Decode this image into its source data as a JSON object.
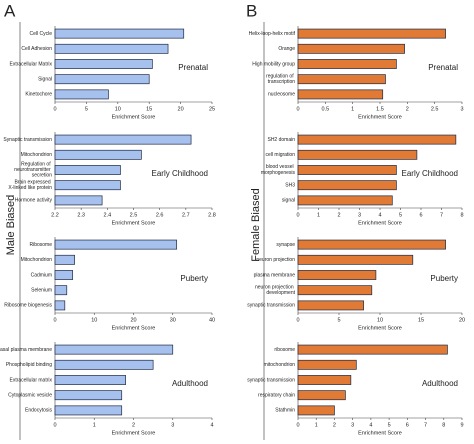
{
  "panels": [
    {
      "letter": "A",
      "label": "Male Biased"
    },
    {
      "letter": "B",
      "label": "Female Biased"
    }
  ],
  "chart_data": [
    {
      "type": "bar",
      "orientation": "horizontal",
      "panel": 0,
      "annotation": "Prenatal",
      "xlabel": "Enrichment Score",
      "color": "#a7c1ee",
      "categories": [
        "Cell Cycle",
        "Cell Adhesion",
        "Extracellular Matrix",
        "Signal",
        "Kinetochore"
      ],
      "values": [
        20.5,
        18,
        15.5,
        15,
        8.5
      ],
      "xlim": [
        0,
        25
      ],
      "xticks": [
        0,
        5,
        10,
        15,
        20,
        25
      ]
    },
    {
      "type": "bar",
      "orientation": "horizontal",
      "panel": 0,
      "annotation": "Early Childhood",
      "xlabel": "Enrichment Score",
      "color": "#a7c1ee",
      "categories": [
        "Synaptic transmission",
        "Mitochondrion",
        "Regulation of neurotransmitter secretion",
        "Brain expressed X-linked like protein",
        "Hormone activity"
      ],
      "values": [
        2.72,
        2.53,
        2.45,
        2.45,
        2.38
      ],
      "xlim": [
        2.2,
        2.8
      ],
      "xticks": [
        2.2,
        2.3,
        2.4,
        2.5,
        2.6,
        2.7,
        2.8
      ]
    },
    {
      "type": "bar",
      "orientation": "horizontal",
      "panel": 0,
      "annotation": "Puberty",
      "xlabel": "Enrichment Score",
      "color": "#a7c1ee",
      "categories": [
        "Ribosome",
        "Mitochondrion",
        "Cadmium",
        "Selenium",
        "Ribosome biogenesis"
      ],
      "values": [
        31,
        5,
        4.5,
        3,
        2.5
      ],
      "xlim": [
        0,
        40
      ],
      "xticks": [
        0,
        10,
        20,
        30,
        40
      ]
    },
    {
      "type": "bar",
      "orientation": "horizontal",
      "panel": 0,
      "annotation": "Adulthood",
      "xlabel": "Enrichment Score",
      "color": "#a7c1ee",
      "categories": [
        "Basal plasma membrane",
        "Phospholipid binding",
        "Extracellular matrix",
        "Cytoplasmic vesicle",
        "Endocytosis"
      ],
      "values": [
        3.0,
        2.5,
        1.8,
        1.7,
        1.7
      ],
      "xlim": [
        0,
        4
      ],
      "xticks": [
        0,
        1,
        2,
        3,
        4
      ]
    },
    {
      "type": "bar",
      "orientation": "horizontal",
      "panel": 1,
      "annotation": "Prenatal",
      "xlabel": "Enrichment Score",
      "color": "#e07a35",
      "categories": [
        "Helix-loop-helix motif",
        "Orange",
        "High mobility group",
        "regulation of transcription",
        "nucleosome"
      ],
      "values": [
        2.7,
        1.95,
        1.8,
        1.6,
        1.55
      ],
      "xlim": [
        0,
        3
      ],
      "xticks": [
        0,
        0.5,
        1,
        1.5,
        2,
        2.5,
        3
      ]
    },
    {
      "type": "bar",
      "orientation": "horizontal",
      "panel": 1,
      "annotation": "Early Childhood",
      "xlabel": "Enrichment Score",
      "color": "#e07a35",
      "categories": [
        "SH2 domain",
        "cell migration",
        "blood vessel morphogenesis",
        "SH3",
        "signal"
      ],
      "values": [
        7.7,
        5.8,
        4.8,
        4.8,
        4.6
      ],
      "xlim": [
        0,
        8
      ],
      "xticks": [
        0,
        1,
        2,
        3,
        4,
        5,
        6,
        7,
        8
      ]
    },
    {
      "type": "bar",
      "orientation": "horizontal",
      "panel": 1,
      "annotation": "Puberty",
      "xlabel": "Enrichment Score",
      "color": "#e07a35",
      "categories": [
        "synapse",
        "neuron projection",
        "plasma membrane",
        "neuron projection development",
        "synaptic transmission"
      ],
      "values": [
        18,
        14,
        9.5,
        9,
        8
      ],
      "xlim": [
        0,
        20
      ],
      "xticks": [
        0,
        5,
        10,
        15,
        20
      ]
    },
    {
      "type": "bar",
      "orientation": "horizontal",
      "panel": 1,
      "annotation": "Adulthood",
      "xlabel": "Enrichment Score",
      "color": "#e07a35",
      "categories": [
        "ribosome",
        "mitochondrion",
        "synaptic transmission",
        "respiratory chain",
        "Stathmin"
      ],
      "values": [
        8.2,
        3.2,
        2.9,
        2.6,
        2.0
      ],
      "xlim": [
        0,
        9
      ],
      "xticks": [
        0,
        1,
        2,
        3,
        4,
        5,
        6,
        7,
        8,
        9
      ]
    }
  ]
}
